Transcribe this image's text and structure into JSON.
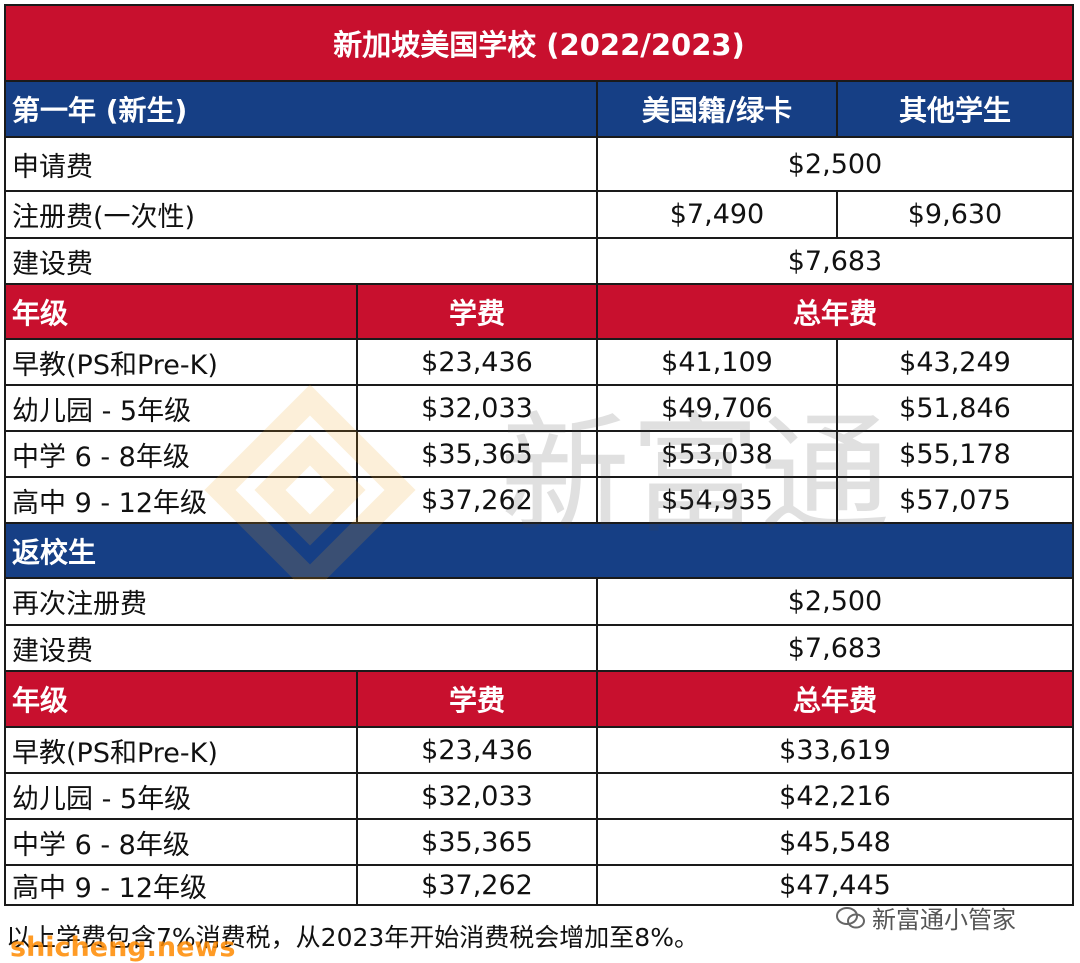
{
  "title": "新加坡美国学校 (2022/2023)",
  "first_year": {
    "header": "第一年 (新生)",
    "col_us": "美国籍/绿卡",
    "col_other": "其他学生",
    "application_fee": {
      "label": "申请费",
      "value": "$2,500"
    },
    "registration_fee": {
      "label": "注册费(一次性)",
      "us": "$7,490",
      "other": "$9,630"
    },
    "building_fee": {
      "label": "建设费",
      "value": "$7,683"
    },
    "grade_header": {
      "grade": "年级",
      "tuition": "学费",
      "total": "总年费"
    },
    "grades": [
      {
        "grade": "早教(PS和Pre-K)",
        "tuition": "$23,436",
        "us": "$41,109",
        "other": "$43,249"
      },
      {
        "grade": "幼儿园 - 5年级",
        "tuition": "$32,033",
        "us": "$49,706",
        "other": "$51,846"
      },
      {
        "grade": "中学 6 - 8年级",
        "tuition": "$35,365",
        "us": "$53,038",
        "other": "$55,178"
      },
      {
        "grade": "高中 9 - 12年级",
        "tuition": "$37,262",
        "us": "$54,935",
        "other": "$57,075"
      }
    ]
  },
  "returning": {
    "header": "返校生",
    "reregistration_fee": {
      "label": "再次注册费",
      "value": "$2,500"
    },
    "building_fee": {
      "label": "建设费",
      "value": "$7,683"
    },
    "grade_header": {
      "grade": "年级",
      "tuition": "学费",
      "total": "总年费"
    },
    "grades": [
      {
        "grade": "早教(PS和Pre-K)",
        "tuition": "$23,436",
        "total": "$33,619"
      },
      {
        "grade": "幼儿园 - 5年级",
        "tuition": "$32,033",
        "total": "$42,216"
      },
      {
        "grade": "中学 6 - 8年级",
        "tuition": "$35,365",
        "total": "$45,548"
      },
      {
        "grade": "高中 9 - 12年级",
        "tuition": "$37,262",
        "total": "$47,445"
      }
    ]
  },
  "footer_note": "以上学费包含7%消费税，从2023年开始消费税会增加至8%。",
  "account_stamp": "新富通小管家",
  "site_mark": "shicheng.news",
  "watermark_text": "新富通",
  "colors": {
    "red": "#c8102e",
    "blue": "#163f85"
  }
}
